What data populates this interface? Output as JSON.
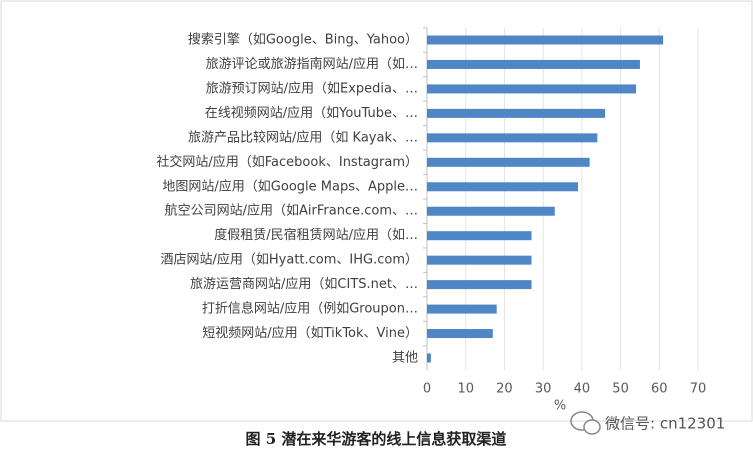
{
  "chart_data": {
    "type": "bar",
    "orientation": "horizontal",
    "categories": [
      "搜索引擎（如Google、Bing、Yahoo）",
      "旅游评论或旅游指南网站/应用（如…",
      "旅游预订网站/应用（如Expedia、…",
      "在线视频网站/应用（如YouTube、…",
      "旅游产品比较网站/应用（如 Kayak、…",
      "社交网站/应用（如Facebook、Instagram）",
      "地图网站/应用（如Google Maps、Apple…",
      "航空公司网站/应用（如AirFrance.com、…",
      "度假租赁/民宿租赁网站/应用（如…",
      "酒店网站/应用（如Hyatt.com、IHG.com）",
      "旅游运营商网站/应用（如CITS.net、…",
      "打折信息网站/应用（例如Groupon…",
      "短视频网站/应用（如TikTok、Vine）",
      "其他"
    ],
    "values": [
      61,
      55,
      54,
      46,
      44,
      42,
      39,
      33,
      27,
      27,
      27,
      18,
      17,
      1
    ],
    "color": "#4f86c6",
    "xlabel": "%",
    "xlim": [
      0,
      70
    ],
    "xticks": [
      0,
      10,
      20,
      30,
      40,
      50,
      60,
      70
    ],
    "grid": true
  },
  "caption": "图 5  潜在来华游客的线上信息获取渠道",
  "watermark": "微信号: cn12301"
}
